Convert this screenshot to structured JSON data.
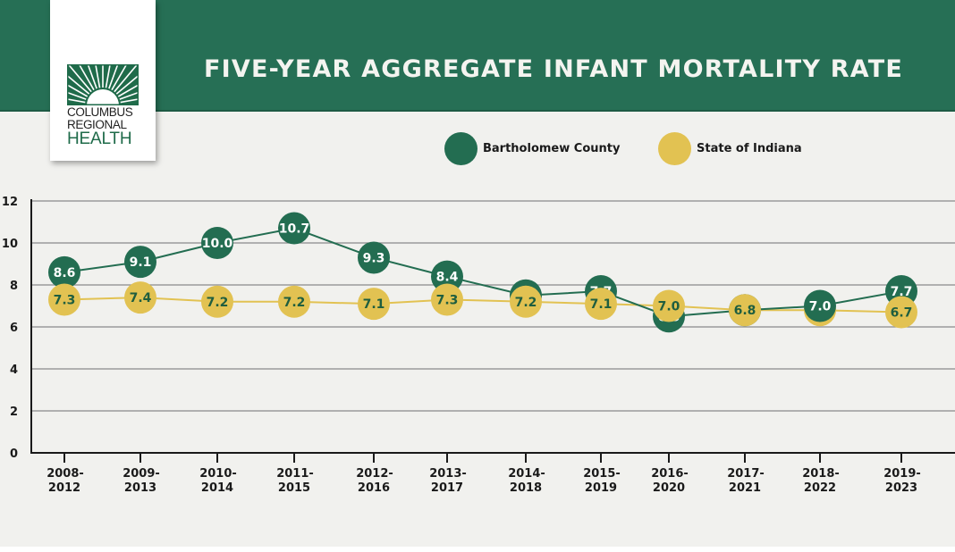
{
  "header": {
    "title": "FIVE-YEAR AGGREGATE INFANT MORTALITY RATE"
  },
  "logo": {
    "line1": "COLUMBUS",
    "line2": "REGIONAL",
    "line3": "HEALTH",
    "icon": "sunburst-logo-icon"
  },
  "colors": {
    "brand_green": "#266f55",
    "county": "#236d51",
    "state": "#e2c252",
    "county_text": "#ffffff",
    "state_text": "#1f5e3f"
  },
  "chart_data": {
    "type": "line",
    "title": "FIVE-YEAR AGGREGATE INFANT MORTALITY RATE",
    "xlabel": "",
    "ylabel": "",
    "ylim": [
      0,
      12
    ],
    "yticks": [
      "0",
      "2",
      "4",
      "6",
      "8",
      "10",
      "12"
    ],
    "grid": true,
    "legend_position": "top-right",
    "categories": [
      [
        "2008-",
        "2012"
      ],
      [
        "2009-",
        "2013"
      ],
      [
        "2010-",
        "2014"
      ],
      [
        "2011-",
        "2015"
      ],
      [
        "2012-",
        "2016"
      ],
      [
        "2013-",
        "2017"
      ],
      [
        "2014-",
        "2018"
      ],
      [
        "2015-",
        "2019"
      ],
      [
        "2016-",
        "2020"
      ],
      [
        "2017-",
        "2021"
      ],
      [
        "2018-",
        "2022"
      ],
      [
        "2019-",
        "2023"
      ]
    ],
    "series": [
      {
        "name": "Bartholomew County",
        "values": [
          8.6,
          9.1,
          10.0,
          10.7,
          9.3,
          8.4,
          7.5,
          7.7,
          6.5,
          6.8,
          7.0,
          7.7
        ],
        "labels": [
          "8.6",
          "9.1",
          "10.0",
          "10.7",
          "9.3",
          "8.4",
          "7.5",
          "7.7",
          "6.5",
          "6.8",
          "7.0",
          "7.7"
        ]
      },
      {
        "name": "State of Indiana",
        "values": [
          7.3,
          7.4,
          7.2,
          7.2,
          7.1,
          7.3,
          7.2,
          7.1,
          7.0,
          6.8,
          6.8,
          6.7
        ],
        "labels": [
          "7.3",
          "7.4",
          "7.2",
          "7.2",
          "7.1",
          "7.3",
          "7.2",
          "7.1",
          "7.0",
          "6.8",
          "6.8",
          "6.7"
        ]
      }
    ]
  }
}
